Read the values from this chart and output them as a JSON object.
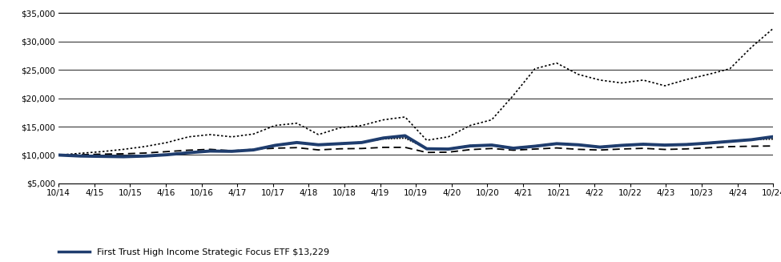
{
  "xlabels": [
    "10/14",
    "4/15",
    "10/15",
    "4/16",
    "10/16",
    "4/17",
    "10/17",
    "4/18",
    "10/18",
    "4/19",
    "10/19",
    "4/20",
    "10/20",
    "4/21",
    "10/21",
    "4/22",
    "10/22",
    "4/23",
    "10/23",
    "4/24",
    "10/24"
  ],
  "ylim": [
    5000,
    35000
  ],
  "yticks": [
    5000,
    10000,
    15000,
    20000,
    25000,
    30000,
    35000
  ],
  "ytick_labels": [
    "$5,000",
    "$10,000",
    "$15,000",
    "$20,000",
    "$25,000",
    "$30,000",
    "$35,000"
  ],
  "etf_color": "#1f3d6e",
  "background_color": "#ffffff",
  "grid_color": "#000000",
  "tick_fontsize": 7.5,
  "legend_fontsize": 8.0,
  "etf_values": [
    10000,
    9820,
    9760,
    9700,
    9820,
    10050,
    10400,
    10700,
    10650,
    10900,
    11700,
    12200,
    11800,
    12000,
    12200,
    13000,
    13400,
    11100,
    11050,
    11600,
    11750,
    11200,
    11550,
    12000,
    11800,
    11400,
    11700,
    11900,
    11750,
    11850,
    12100,
    12400,
    12700,
    13229
  ],
  "blended_values": [
    10000,
    9830,
    9780,
    9710,
    9830,
    10060,
    10450,
    10750,
    10700,
    10950,
    11750,
    12250,
    11850,
    12050,
    12250,
    12850,
    13000,
    11150,
    11100,
    11650,
    11800,
    11250,
    11600,
    12050,
    11850,
    11450,
    11750,
    11950,
    11800,
    11900,
    12150,
    12450,
    12750,
    12820
  ],
  "bloomberg_values": [
    10000,
    10050,
    10150,
    10220,
    10350,
    10600,
    10850,
    11000,
    10750,
    11000,
    11200,
    11300,
    10900,
    11100,
    11150,
    11350,
    11350,
    10450,
    10500,
    10950,
    11150,
    10850,
    11050,
    11250,
    11000,
    10880,
    11060,
    11180,
    10980,
    11080,
    11280,
    11480,
    11550,
    11593
  ],
  "russell_values": [
    10000,
    10300,
    10600,
    11000,
    11500,
    12200,
    13200,
    13600,
    13200,
    13700,
    15200,
    15600,
    13600,
    14800,
    15200,
    16200,
    16700,
    12600,
    13200,
    15200,
    16200,
    20500,
    25200,
    26200,
    24200,
    23200,
    22700,
    23200,
    22200,
    23300,
    24200,
    25200,
    29000,
    32298
  ],
  "n_points": 34
}
